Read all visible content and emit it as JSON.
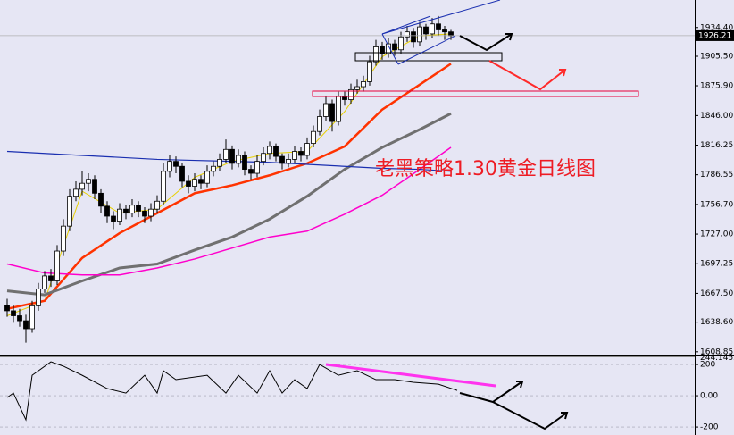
{
  "chart_data": [
    {
      "type": "candlestick",
      "annotation": "老黑策略1.30黄金日线图",
      "ylim": [
        1606,
        1962
      ],
      "yticks": [
        {
          "value": 1934.4,
          "label": "1934.40"
        },
        {
          "value": 1905.5,
          "label": "1905.50"
        },
        {
          "value": 1875.9,
          "label": "1875.90"
        },
        {
          "value": 1846,
          "label": "1846.00"
        },
        1816.25,
        1786.55,
        {
          "value": 1756.7,
          "label": "1756.70"
        },
        {
          "value": 1727,
          "label": "1727.00"
        },
        1697.25,
        {
          "value": 1667.5,
          "label": "1667.50"
        },
        {
          "value": 1638.6,
          "label": "1638.60"
        },
        1608.85
      ],
      "price_marker": 1926.21,
      "up_color": "#ffffff",
      "down_color": "#000000",
      "candles": [
        [
          1655,
          1662,
          1644,
          1650
        ],
        [
          1650,
          1656,
          1638,
          1645
        ],
        [
          1645,
          1652,
          1634,
          1640
        ],
        [
          1640,
          1646,
          1618,
          1632
        ],
        [
          1632,
          1660,
          1628,
          1655
        ],
        [
          1655,
          1678,
          1650,
          1672
        ],
        [
          1672,
          1690,
          1668,
          1685
        ],
        [
          1685,
          1692,
          1674,
          1680
        ],
        [
          1680,
          1716,
          1676,
          1710
        ],
        [
          1710,
          1742,
          1705,
          1735
        ],
        [
          1735,
          1772,
          1730,
          1765
        ],
        [
          1765,
          1780,
          1760,
          1772
        ],
        [
          1772,
          1790,
          1766,
          1778
        ],
        [
          1778,
          1788,
          1770,
          1782
        ],
        [
          1782,
          1786,
          1762,
          1768
        ],
        [
          1768,
          1772,
          1748,
          1755
        ],
        [
          1755,
          1760,
          1738,
          1745
        ],
        [
          1745,
          1750,
          1732,
          1740
        ],
        [
          1740,
          1758,
          1736,
          1752
        ],
        [
          1752,
          1756,
          1742,
          1748
        ],
        [
          1748,
          1762,
          1744,
          1756
        ],
        [
          1756,
          1760,
          1744,
          1750
        ],
        [
          1750,
          1754,
          1738,
          1745
        ],
        [
          1745,
          1758,
          1740,
          1752
        ],
        [
          1752,
          1766,
          1748,
          1760
        ],
        [
          1760,
          1798,
          1756,
          1790
        ],
        [
          1790,
          1806,
          1784,
          1800
        ],
        [
          1800,
          1805,
          1788,
          1795
        ],
        [
          1795,
          1798,
          1774,
          1780
        ],
        [
          1780,
          1786,
          1768,
          1775
        ],
        [
          1775,
          1788,
          1770,
          1782
        ],
        [
          1782,
          1786,
          1772,
          1778
        ],
        [
          1778,
          1796,
          1774,
          1790
        ],
        [
          1790,
          1800,
          1785,
          1795
        ],
        [
          1795,
          1808,
          1790,
          1802
        ],
        [
          1802,
          1822,
          1798,
          1812
        ],
        [
          1812,
          1816,
          1792,
          1798
        ],
        [
          1798,
          1812,
          1794,
          1806
        ],
        [
          1806,
          1810,
          1786,
          1792
        ],
        [
          1792,
          1796,
          1782,
          1788
        ],
        [
          1788,
          1806,
          1784,
          1800
        ],
        [
          1800,
          1814,
          1796,
          1808
        ],
        [
          1808,
          1820,
          1802,
          1815
        ],
        [
          1815,
          1818,
          1800,
          1805
        ],
        [
          1805,
          1808,
          1792,
          1798
        ],
        [
          1798,
          1808,
          1794,
          1802
        ],
        [
          1802,
          1815,
          1798,
          1810
        ],
        [
          1810,
          1814,
          1800,
          1806
        ],
        [
          1806,
          1824,
          1802,
          1818
        ],
        [
          1818,
          1836,
          1814,
          1830
        ],
        [
          1830,
          1852,
          1826,
          1845
        ],
        [
          1845,
          1866,
          1840,
          1858
        ],
        [
          1858,
          1862,
          1830,
          1840
        ],
        [
          1840,
          1870,
          1836,
          1865
        ],
        [
          1865,
          1870,
          1856,
          1862
        ],
        [
          1862,
          1878,
          1858,
          1872
        ],
        [
          1872,
          1882,
          1868,
          1875
        ],
        [
          1875,
          1886,
          1870,
          1880
        ],
        [
          1880,
          1906,
          1876,
          1900
        ],
        [
          1900,
          1922,
          1896,
          1915
        ],
        [
          1915,
          1920,
          1902,
          1908
        ],
        [
          1908,
          1924,
          1904,
          1918
        ],
        [
          1918,
          1922,
          1906,
          1912
        ],
        [
          1912,
          1930,
          1908,
          1925
        ],
        [
          1925,
          1936,
          1920,
          1930
        ],
        [
          1930,
          1934,
          1914,
          1920
        ],
        [
          1920,
          1940,
          1916,
          1935
        ],
        [
          1935,
          1938,
          1922,
          1928
        ],
        [
          1928,
          1944,
          1924,
          1938
        ],
        [
          1938,
          1946,
          1926,
          1932
        ],
        [
          1932,
          1936,
          1922,
          1930
        ],
        [
          1930,
          1932,
          1922,
          1926.21
        ]
      ],
      "series": [
        {
          "color": "#e8d000",
          "width": 1,
          "x": [
            0,
            6,
            12,
            18,
            24,
            30,
            36,
            42,
            48,
            54,
            60,
            66,
            71
          ],
          "values": [
            1645,
            1660,
            1770,
            1748,
            1752,
            1784,
            1800,
            1808,
            1810,
            1850,
            1905,
            1926,
            1928
          ]
        },
        {
          "color": "#ff3300",
          "width": 2.5,
          "x": [
            0,
            6,
            12,
            18,
            24,
            30,
            36,
            42,
            48,
            54,
            60,
            66,
            71
          ],
          "values": [
            1652,
            1660,
            1703,
            1728,
            1748,
            1768,
            1776,
            1786,
            1798,
            1815,
            1852,
            1877,
            1898
          ]
        },
        {
          "color": "#707070",
          "width": 3,
          "x": [
            0,
            6,
            12,
            18,
            24,
            30,
            36,
            42,
            48,
            54,
            60,
            66,
            71
          ],
          "values": [
            1670,
            1666,
            1680,
            1693,
            1697,
            1711,
            1724,
            1742,
            1765,
            1792,
            1814,
            1832,
            1848
          ]
        },
        {
          "color": "#ff00cc",
          "width": 1.5,
          "x": [
            0,
            6,
            12,
            18,
            24,
            30,
            36,
            42,
            48,
            54,
            60,
            66,
            71
          ],
          "values": [
            1697,
            1688,
            1686,
            1686,
            1693,
            1702,
            1713,
            1724,
            1730,
            1747,
            1766,
            1792,
            1814
          ]
        },
        {
          "color": "#1a2fb0",
          "width": 1.2,
          "x": [
            0,
            6,
            12,
            18,
            24,
            30,
            36,
            42,
            48,
            54,
            60,
            66,
            71
          ],
          "values": [
            1810,
            1808,
            1806,
            1804,
            1802,
            1801,
            1800,
            1799,
            1797,
            1795,
            1793,
            1792,
            1790
          ]
        }
      ]
    },
    {
      "type": "line",
      "ylim": [
        -251,
        246
      ],
      "yticks": [
        200,
        {
          "value": 0,
          "label": "0.00"
        },
        -200
      ],
      "max_label": 244.1452,
      "color": "#000000",
      "x": [
        0,
        1,
        3,
        4,
        7,
        9,
        12,
        16,
        19,
        22,
        24,
        25,
        27,
        32,
        35,
        37,
        40,
        42,
        44,
        46,
        48,
        50,
        53,
        56,
        59,
        62,
        65,
        69,
        72
      ],
      "values": [
        -11,
        17,
        -154,
        131,
        217,
        189,
        131,
        46,
        17,
        131,
        17,
        160,
        103,
        131,
        17,
        131,
        17,
        160,
        17,
        103,
        46,
        200,
        131,
        160,
        103,
        103,
        86,
        74,
        34
      ]
    }
  ]
}
